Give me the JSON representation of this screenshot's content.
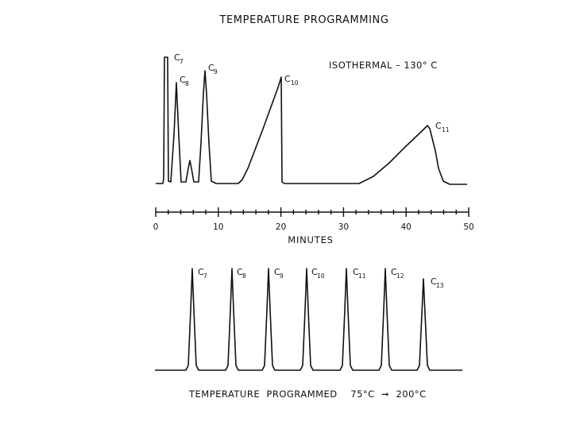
{
  "header": {
    "title": "TEMPERATURE PROGRAMMING"
  },
  "isothermal": {
    "condition_label": "ISOTHERMAL – 130° C",
    "x_axis": {
      "title": "MINUTES",
      "min": 0,
      "max": 50,
      "major_ticks": [
        0,
        10,
        20,
        30,
        40,
        50
      ],
      "minor_ticks": [
        2,
        4,
        6,
        8,
        12,
        14,
        16,
        18,
        22,
        24,
        26,
        28,
        32,
        34,
        36,
        38,
        42,
        44,
        46,
        48
      ]
    },
    "peaks": [
      {
        "base": "C",
        "sub": "7",
        "time": 1.5,
        "rel_height": 1.0
      },
      {
        "base": "C",
        "sub": "8",
        "time": 3.3,
        "rel_height": 0.8
      },
      {
        "base": "C",
        "sub": "9",
        "time": 7.9,
        "rel_height": 0.88
      },
      {
        "base": "C",
        "sub": "10",
        "time": 20.0,
        "rel_height": 0.85
      },
      {
        "base": "C",
        "sub": "11",
        "time": 43.0,
        "rel_height": 0.47
      }
    ]
  },
  "programmed": {
    "condition_label": "TEMPERATURE  PROGRAMMED    75°C  ➞  200°C",
    "peaks": [
      {
        "base": "C",
        "sub": "7"
      },
      {
        "base": "C",
        "sub": "8"
      },
      {
        "base": "C",
        "sub": "9"
      },
      {
        "base": "C",
        "sub": "10"
      },
      {
        "base": "C",
        "sub": "11"
      },
      {
        "base": "C",
        "sub": "12"
      },
      {
        "base": "C",
        "sub": "13"
      }
    ]
  }
}
